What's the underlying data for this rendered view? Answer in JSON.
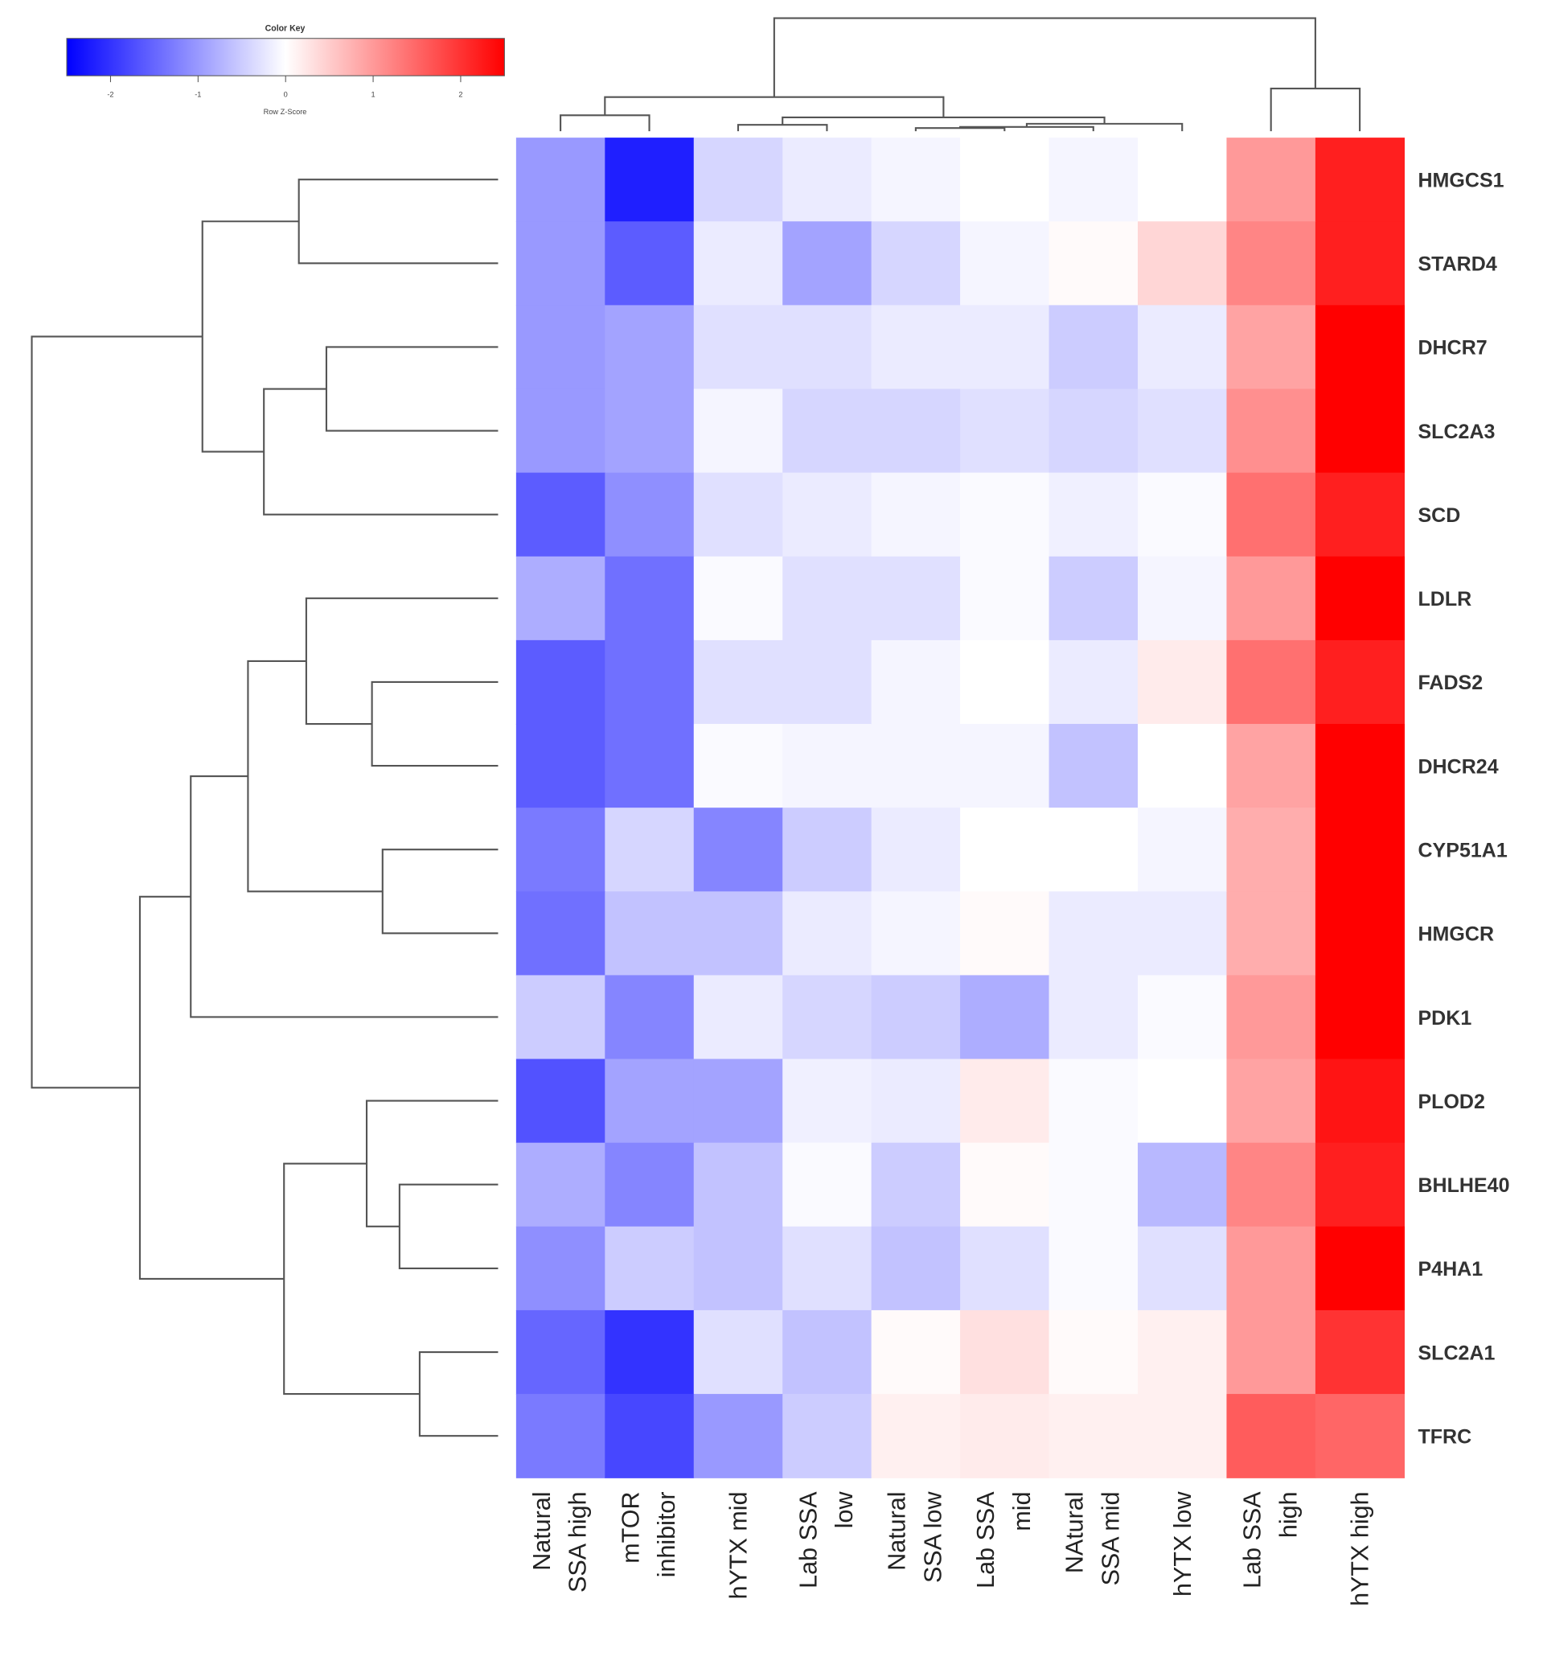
{
  "chart_data": {
    "type": "heatmap",
    "color_key": {
      "title": "Color Key",
      "xlabel": "Row Z-Score",
      "ticks": [
        "-2",
        "-1",
        "0",
        "1",
        "2"
      ],
      "range": [
        -2.5,
        2.5
      ],
      "colors": {
        "low": "#0000ff",
        "mid": "#ffffff",
        "high": "#ff0000"
      }
    },
    "columns": [
      "Natural\nSSA high",
      "mTOR\ninhibitor",
      "hYTX mid",
      "Lab SSA\nlow",
      "Natural\nSSA low",
      "Lab SSA\nmid",
      "NAtural\nSSA mid",
      "hYTX low",
      "Lab SSA\nhigh",
      "hYTX high"
    ],
    "rows": [
      "HMGCS1",
      "STARD4",
      "DHCR7",
      "SLC2A3",
      "SCD",
      "LDLR",
      "FADS2",
      "DHCR24",
      "CYP51A1",
      "HMGCR",
      "PDK1",
      "PLOD2",
      "BHLHE40",
      "P4HA1",
      "SLC2A1",
      "TFRC"
    ],
    "values": [
      [
        -1.0,
        -2.2,
        -0.4,
        -0.2,
        -0.1,
        0.0,
        -0.1,
        0.0,
        1.0,
        2.2
      ],
      [
        -1.0,
        -1.6,
        -0.2,
        -0.9,
        -0.4,
        -0.1,
        0.05,
        0.4,
        1.2,
        2.2
      ],
      [
        -1.0,
        -0.9,
        -0.3,
        -0.3,
        -0.2,
        -0.2,
        -0.5,
        -0.2,
        0.9,
        2.5
      ],
      [
        -1.0,
        -0.9,
        -0.1,
        -0.4,
        -0.4,
        -0.3,
        -0.4,
        -0.3,
        1.1,
        2.5
      ],
      [
        -1.6,
        -1.1,
        -0.3,
        -0.2,
        -0.1,
        -0.05,
        -0.15,
        -0.05,
        1.4,
        2.2
      ],
      [
        -0.8,
        -1.4,
        -0.05,
        -0.3,
        -0.3,
        -0.05,
        -0.5,
        -0.1,
        1.0,
        2.5
      ],
      [
        -1.6,
        -1.4,
        -0.3,
        -0.3,
        -0.1,
        0.0,
        -0.2,
        0.2,
        1.4,
        2.2
      ],
      [
        -1.6,
        -1.4,
        -0.05,
        -0.1,
        -0.1,
        -0.1,
        -0.6,
        0.0,
        0.9,
        2.5
      ],
      [
        -1.3,
        -0.4,
        -1.2,
        -0.5,
        -0.2,
        0.0,
        0.0,
        -0.1,
        0.8,
        2.5
      ],
      [
        -1.4,
        -0.6,
        -0.6,
        -0.2,
        -0.1,
        0.05,
        -0.2,
        -0.2,
        0.8,
        2.5
      ],
      [
        -0.5,
        -1.2,
        -0.2,
        -0.4,
        -0.5,
        -0.8,
        -0.2,
        -0.05,
        1.0,
        2.5
      ],
      [
        -1.7,
        -0.9,
        -0.9,
        -0.15,
        -0.2,
        0.2,
        -0.05,
        0.0,
        0.9,
        2.3
      ],
      [
        -0.8,
        -1.2,
        -0.6,
        -0.05,
        -0.5,
        0.05,
        -0.05,
        -0.7,
        1.2,
        2.2
      ],
      [
        -1.1,
        -0.5,
        -0.6,
        -0.3,
        -0.6,
        -0.3,
        -0.05,
        -0.3,
        1.0,
        2.5
      ],
      [
        -1.5,
        -2.0,
        -0.3,
        -0.6,
        0.05,
        0.3,
        0.05,
        0.15,
        1.0,
        2.0
      ],
      [
        -1.3,
        -1.8,
        -1.0,
        -0.5,
        0.15,
        0.2,
        0.15,
        0.15,
        1.6,
        1.5
      ]
    ],
    "row_dendrogram": true,
    "column_dendrogram": true
  }
}
